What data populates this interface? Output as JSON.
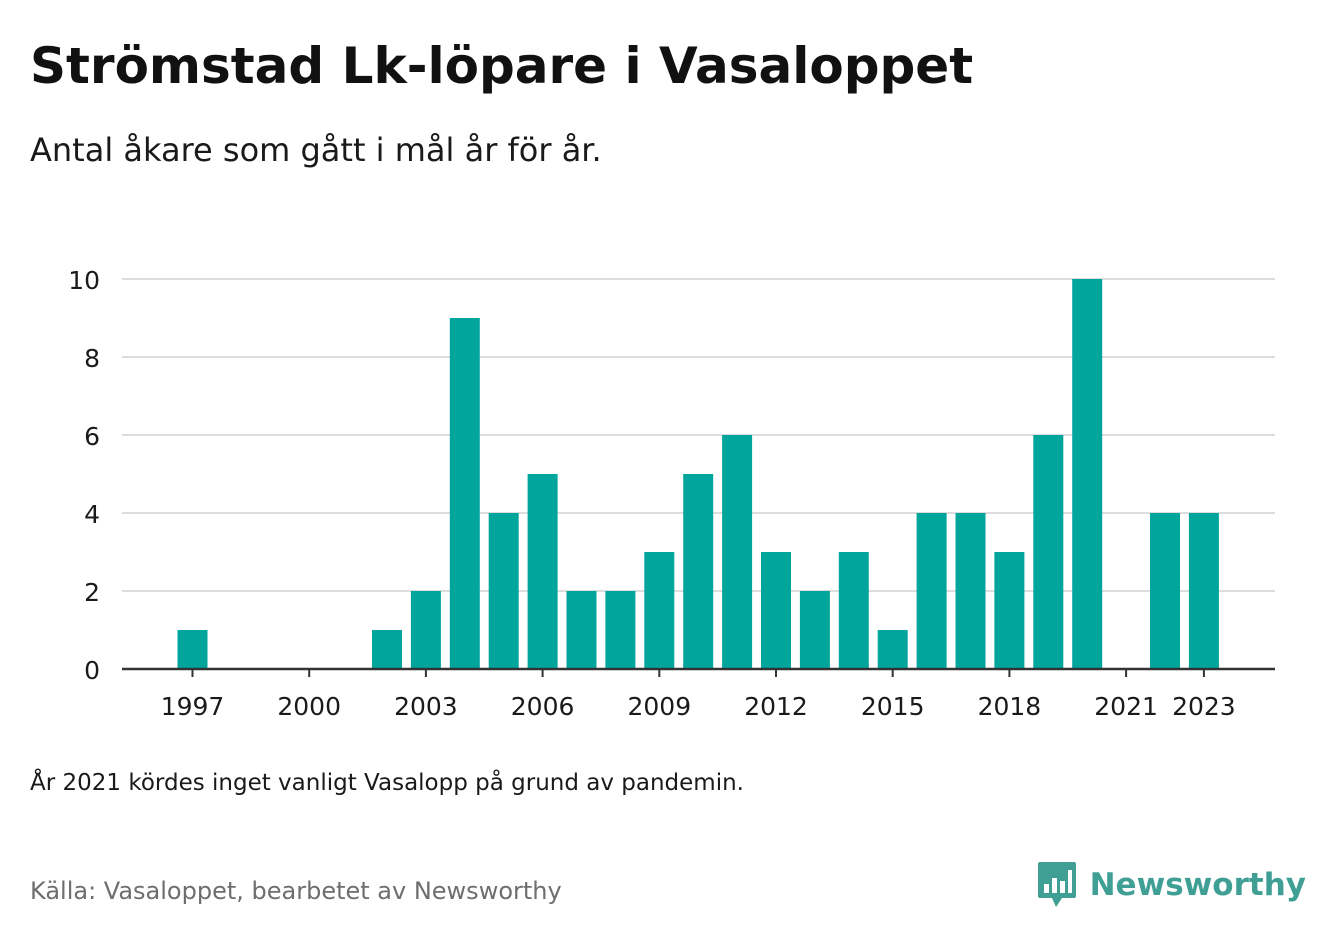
{
  "title": "Strömstad Lk-löpare i Vasaloppet",
  "subtitle": "Antal åkare som gått i mål år för år.",
  "note": "År 2021 kördes inget vanligt Vasalopp på grund av pandemin.",
  "source": "Källa: Vasaloppet, bearbetet av Newsworthy",
  "brand": {
    "name": "Newsworthy",
    "icon": "bar-chart-speech-bubble-icon",
    "color": "#3f9f95"
  },
  "colors": {
    "bar": "#00a69c",
    "grid": "#dddddd",
    "axis": "#333333",
    "text": "#1a1a1a",
    "source": "#6e6e6e"
  },
  "chart_data": {
    "type": "bar",
    "categories": [
      "1997",
      "1998",
      "1999",
      "2000",
      "2001",
      "2002",
      "2003",
      "2004",
      "2005",
      "2006",
      "2007",
      "2008",
      "2009",
      "2010",
      "2011",
      "2012",
      "2013",
      "2014",
      "2015",
      "2016",
      "2017",
      "2018",
      "2019",
      "2020",
      "2021",
      "2022",
      "2023"
    ],
    "values": [
      1,
      0,
      0,
      0,
      0,
      1,
      2,
      9,
      4,
      5,
      2,
      2,
      3,
      5,
      6,
      3,
      2,
      3,
      1,
      4,
      4,
      3,
      6,
      10,
      null,
      4,
      4
    ],
    "xticks": [
      "1997",
      "2000",
      "2003",
      "2006",
      "2009",
      "2012",
      "2015",
      "2018",
      "2021",
      "2023"
    ],
    "yticks": [
      0,
      2,
      4,
      6,
      8,
      10
    ],
    "ylim": [
      0,
      10
    ],
    "grid": true,
    "legend": "none"
  }
}
